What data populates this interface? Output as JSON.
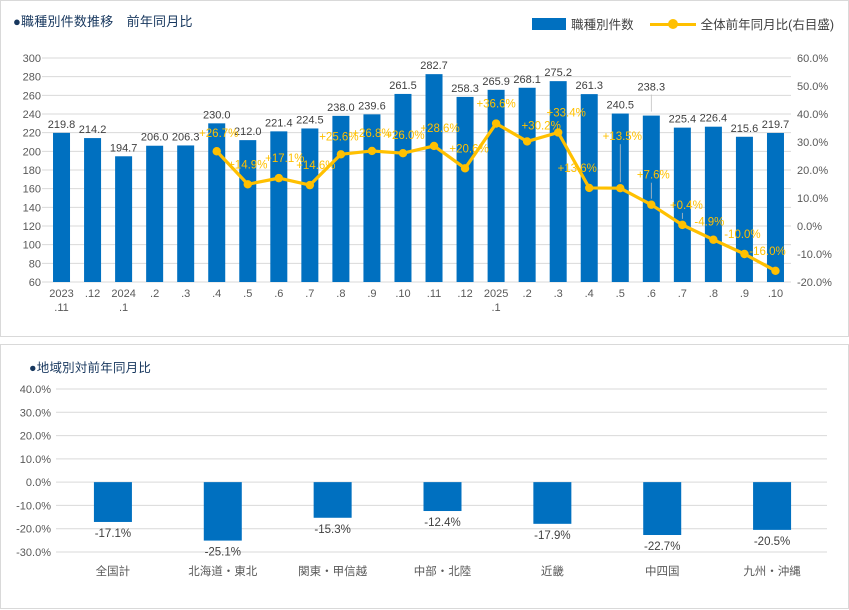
{
  "colors": {
    "bar": "#0070C0",
    "line": "#FFC000",
    "bar_label": "#404040",
    "line_label": "#FFC000",
    "axis_text": "#595959",
    "gridline": "#D9D9D9",
    "leader": "#BFBFBF",
    "title": "#17375E",
    "panel_border": "#D9D9D9",
    "background": "#FFFFFF"
  },
  "top_chart": {
    "title": "●職種別件数推移　前年同月比",
    "legend": {
      "bar_label": "職種別件数",
      "line_label": "全体前年同月比(右目盛)"
    }
  },
  "bottom_chart": {
    "title": "●地域別対前年同月比"
  },
  "chart_data": [
    {
      "type": "bar",
      "combo": "bar+line",
      "title": "職種別件数推移 前年同月比",
      "legend_position": "top-right",
      "grid": true,
      "categories": [
        [
          "2023",
          ".11"
        ],
        [
          ".12"
        ],
        [
          "2024",
          ".1"
        ],
        [
          ".2"
        ],
        [
          ".3"
        ],
        [
          ".4"
        ],
        [
          ".5"
        ],
        [
          ".6"
        ],
        [
          ".7"
        ],
        [
          ".8"
        ],
        [
          ".9"
        ],
        [
          ".10"
        ],
        [
          ".11"
        ],
        [
          ".12"
        ],
        [
          "2025",
          ".1"
        ],
        [
          ".2"
        ],
        [
          ".3"
        ],
        [
          ".4"
        ],
        [
          ".5"
        ],
        [
          ".6"
        ],
        [
          ".7"
        ],
        [
          ".8"
        ],
        [
          ".9"
        ],
        [
          ".10"
        ]
      ],
      "series": [
        {
          "name": "職種別件数",
          "type": "bar",
          "axis": "left",
          "values": [
            219.8,
            214.2,
            194.7,
            206.0,
            206.3,
            230.0,
            212.0,
            221.4,
            224.5,
            238.0,
            239.6,
            261.5,
            282.7,
            258.3,
            265.9,
            268.1,
            275.2,
            261.3,
            240.5,
            238.3,
            225.4,
            226.4,
            215.6,
            219.7
          ]
        },
        {
          "name": "全体前年同月比(右目盛)",
          "type": "line",
          "axis": "right",
          "values": [
            null,
            null,
            null,
            null,
            null,
            26.7,
            14.9,
            17.1,
            14.6,
            25.6,
            26.8,
            26.0,
            28.6,
            20.6,
            36.6,
            30.2,
            33.4,
            13.6,
            13.5,
            7.6,
            0.4,
            -4.9,
            -10.0,
            -16.0
          ],
          "labels": [
            null,
            null,
            null,
            null,
            null,
            "+26.7%",
            "+14.9%",
            "+17.1%",
            "+14.6%",
            "+25.6%",
            "+26.8%",
            "+26.0%",
            "+28.6%",
            "+20.6%",
            "+36.6%",
            "+30.2%",
            "+33.4%",
            "+13.6%",
            "+13.5%",
            "+7.6%",
            "+0.4%",
            "-4.9%",
            "-10.0%",
            "-16.0%"
          ]
        }
      ],
      "left_axis": {
        "min": 60,
        "max": 300,
        "step": 20
      },
      "right_axis": {
        "min": -20,
        "max": 60,
        "step": 10,
        "tick_format": "percent_1dp"
      }
    },
    {
      "type": "bar",
      "title": "地域別対前年同月比",
      "grid": true,
      "categories": [
        "全国計",
        "北海道・東北",
        "関東・甲信越",
        "中部・北陸",
        "近畿",
        "中四国",
        "九州・沖縄"
      ],
      "values": [
        -17.1,
        -25.1,
        -15.3,
        -12.4,
        -17.9,
        -22.7,
        -20.5
      ],
      "labels": [
        "-17.1%",
        "-25.1%",
        "-15.3%",
        "-12.4%",
        "-17.9%",
        "-22.7%",
        "-20.5%"
      ],
      "y_axis": {
        "min": -30,
        "max": 40,
        "step": 10,
        "tick_format": "percent_1dp"
      }
    }
  ]
}
